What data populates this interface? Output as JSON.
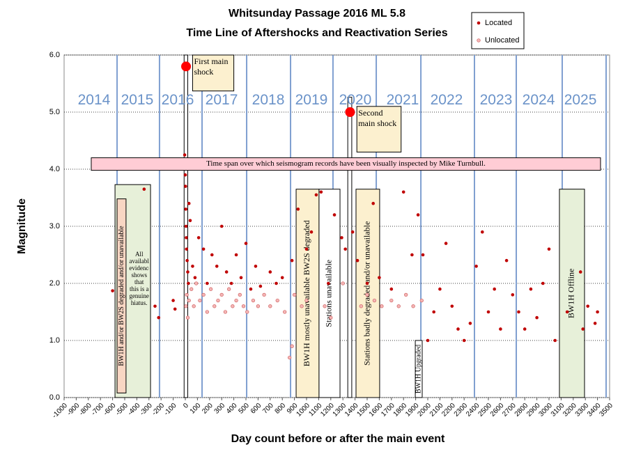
{
  "chart_data": {
    "type": "scatter",
    "title": "Whitsunday  Passage  2016 ML 5.8",
    "subtitle": "Time Line of Aftershocks and Reactivation Series",
    "x_label": "Day count before or after the main event",
    "y_label": "Magnitude",
    "xlim": [
      -1000,
      3500
    ],
    "xticks": [
      -1000,
      -900,
      -800,
      -700,
      -600,
      -500,
      -400,
      -300,
      -200,
      -100,
      0,
      100,
      200,
      300,
      400,
      500,
      600,
      700,
      800,
      900,
      1000,
      1100,
      1200,
      1300,
      1400,
      1500,
      1600,
      1700,
      1800,
      1900,
      2000,
      2100,
      2200,
      2300,
      2400,
      2500,
      2600,
      2700,
      2800,
      2900,
      3000,
      3100,
      3200,
      3300,
      3400,
      3500
    ],
    "ylim": [
      0,
      6
    ],
    "yticks": [
      {
        "value": 0,
        "label": "0.0"
      },
      {
        "value": 1,
        "label": "1.0"
      },
      {
        "value": 2,
        "label": "2.0"
      },
      {
        "value": 3,
        "label": "3.0"
      },
      {
        "value": 4,
        "label": "4.0"
      },
      {
        "value": 5,
        "label": "5.0"
      },
      {
        "value": 6,
        "label": "6.0"
      }
    ],
    "grid": true,
    "legend": "top-right",
    "series": [
      {
        "name": "Located",
        "color": "#c00000",
        "x": [
          -600,
          -340,
          -250,
          -220,
          -100,
          -85,
          -5,
          0,
          2,
          4,
          6,
          8,
          10,
          15,
          20,
          25,
          30,
          40,
          60,
          80,
          110,
          150,
          180,
          220,
          260,
          300,
          340,
          380,
          420,
          460,
          500,
          540,
          580,
          620,
          700,
          750,
          800,
          880,
          930,
          1000,
          1040,
          1080,
          1120,
          1180,
          1230,
          1290,
          1320,
          1380,
          1420,
          1500,
          1550,
          1600,
          1700,
          1800,
          1870,
          1920,
          1960,
          2000,
          2050,
          2100,
          2150,
          2200,
          2250,
          2300,
          2350,
          2400,
          2450,
          2500,
          2550,
          2600,
          2650,
          2700,
          2750,
          2800,
          2850,
          2900,
          2950,
          3000,
          3050,
          3150,
          3260,
          3280,
          3320,
          3380,
          3400
        ],
        "values": [
          1.87,
          3.65,
          1.6,
          1.4,
          1.7,
          1.55,
          4.25,
          3.9,
          3.7,
          3.3,
          3.0,
          2.8,
          2.6,
          2.4,
          2.2,
          2.0,
          3.4,
          3.1,
          2.3,
          2.1,
          2.8,
          2.6,
          2.0,
          2.5,
          2.3,
          3.0,
          2.2,
          2.0,
          2.5,
          2.1,
          2.7,
          1.9,
          2.3,
          1.95,
          2.2,
          2.0,
          2.1,
          2.4,
          3.3,
          2.6,
          2.9,
          3.55,
          3.6,
          2.0,
          3.2,
          2.8,
          2.6,
          2.9,
          2.4,
          2.0,
          3.4,
          2.1,
          1.9,
          3.6,
          2.5,
          3.2,
          2.5,
          1.0,
          1.5,
          1.9,
          2.7,
          1.6,
          1.2,
          1.0,
          1.3,
          2.3,
          2.9,
          1.5,
          1.9,
          1.2,
          2.4,
          1.8,
          1.5,
          1.2,
          1.9,
          1.4,
          2.0,
          2.6,
          1.0,
          1.5,
          2.2,
          1.2,
          1.6,
          1.3,
          1.5
        ]
      },
      {
        "name": "Unlocated",
        "color": "#f4b6b6",
        "x": [
          5,
          12,
          20,
          30,
          50,
          70,
          90,
          120,
          150,
          180,
          210,
          240,
          270,
          300,
          330,
          360,
          390,
          420,
          450,
          480,
          510,
          560,
          600,
          650,
          700,
          760,
          820,
          860,
          880,
          900,
          960,
          1000,
          1150,
          1200,
          1300,
          1450,
          1500,
          1560,
          1620,
          1700,
          1760,
          1820,
          1880,
          1950
        ],
        "values": [
          1.6,
          1.8,
          1.4,
          1.7,
          1.9,
          1.6,
          2.0,
          1.7,
          1.8,
          1.5,
          1.9,
          1.6,
          1.7,
          1.8,
          1.5,
          1.9,
          1.6,
          1.7,
          1.8,
          1.6,
          1.5,
          1.7,
          1.6,
          1.8,
          1.6,
          1.7,
          1.5,
          0.7,
          0.9,
          1.8,
          1.6,
          1.7,
          1.6,
          1.4,
          2.0,
          1.6,
          1.8,
          1.7,
          1.6,
          1.7,
          1.6,
          1.8,
          1.6,
          1.7
        ]
      }
    ],
    "main_shocks": {
      "color": "#ff0000",
      "x": [
        6,
        1359
      ],
      "values": [
        5.8,
        5.0
      ]
    },
    "year_lines": {
      "color": "#7f9fd0",
      "x": [
        -563,
        -213,
        138,
        506,
        868,
        1218,
        1575,
        1943,
        2385,
        2730,
        3109,
        3471
      ]
    },
    "year_labels": {
      "color": "#6b93c9",
      "y": 5.2,
      "labels": [
        "2014",
        "2015",
        "2016",
        "2017",
        "2018",
        "2019",
        "2020",
        "2021",
        "2022",
        "2023",
        "2024",
        "2025"
      ],
      "x": [
        -753,
        -397,
        -63,
        299,
        684,
        1040,
        1402,
        1793,
        2155,
        2563,
        2914,
        3259
      ]
    },
    "regions": [
      {
        "x": [
          -10,
          20
        ],
        "y": [
          0,
          6
        ],
        "fill": "#ffffff"
      },
      {
        "x": [
          1340,
          1373
        ],
        "y": [
          0,
          5.26
        ],
        "fill": "#ffffff"
      },
      {
        "x": [
          -776,
          3425
        ],
        "y": [
          3.98,
          4.2
        ],
        "fill": "#ffccd5",
        "text": "Time span over which seismogram records have been visually inspected by Mike Turnbull."
      },
      {
        "x": [
          60,
          400
        ],
        "y": [
          5.37,
          6
        ],
        "fill": "#fcf0cf",
        "text": "First main shock",
        "wrap": true
      },
      {
        "x": [
          1415,
          1780
        ],
        "y": [
          4.3,
          5.1
        ],
        "fill": "#fcf0cf",
        "text": "Second main shock",
        "wrap": true
      },
      {
        "x": [
          -580,
          -287
        ],
        "y": [
          0,
          3.73
        ],
        "fill": "#e7f0d9"
      },
      {
        "x": [
          -563,
          -489
        ],
        "y": [
          0.08,
          3.48
        ],
        "fill": "#f8d6c3",
        "text": "BW1H and/or BW2S degraded and/or unavailable"
      },
      {
        "x": [
          -475,
          -287
        ],
        "y": [
          0.9,
          2.6
        ],
        "fill": "none",
        "text": "All available evidence shows that this is a genuine hiatus.",
        "wrap": true
      },
      {
        "x": [
          914,
          1103
        ],
        "y": [
          0,
          3.65
        ],
        "fill": "#fcf0cf",
        "text": "BW1H mostly unavailable BW2S degraded"
      },
      {
        "x": [
          1103,
          1276
        ],
        "y": [
          0,
          3.65
        ],
        "fill": "#ffffff",
        "text": "Stations unavailable"
      },
      {
        "x": [
          1408,
          1603
        ],
        "y": [
          0,
          3.65
        ],
        "fill": "#fcf0cf",
        "text": "Stations badly degraded and/or unavailable"
      },
      {
        "x": [
          1897,
          1954
        ],
        "y": [
          0,
          1.0
        ],
        "fill": "#ffffff",
        "text": "BW1H Upgraded"
      },
      {
        "x": [
          3086,
          3293
        ],
        "y": [
          0,
          3.65
        ],
        "fill": "#e7f0d9",
        "text": "BW1H Offline"
      }
    ]
  }
}
